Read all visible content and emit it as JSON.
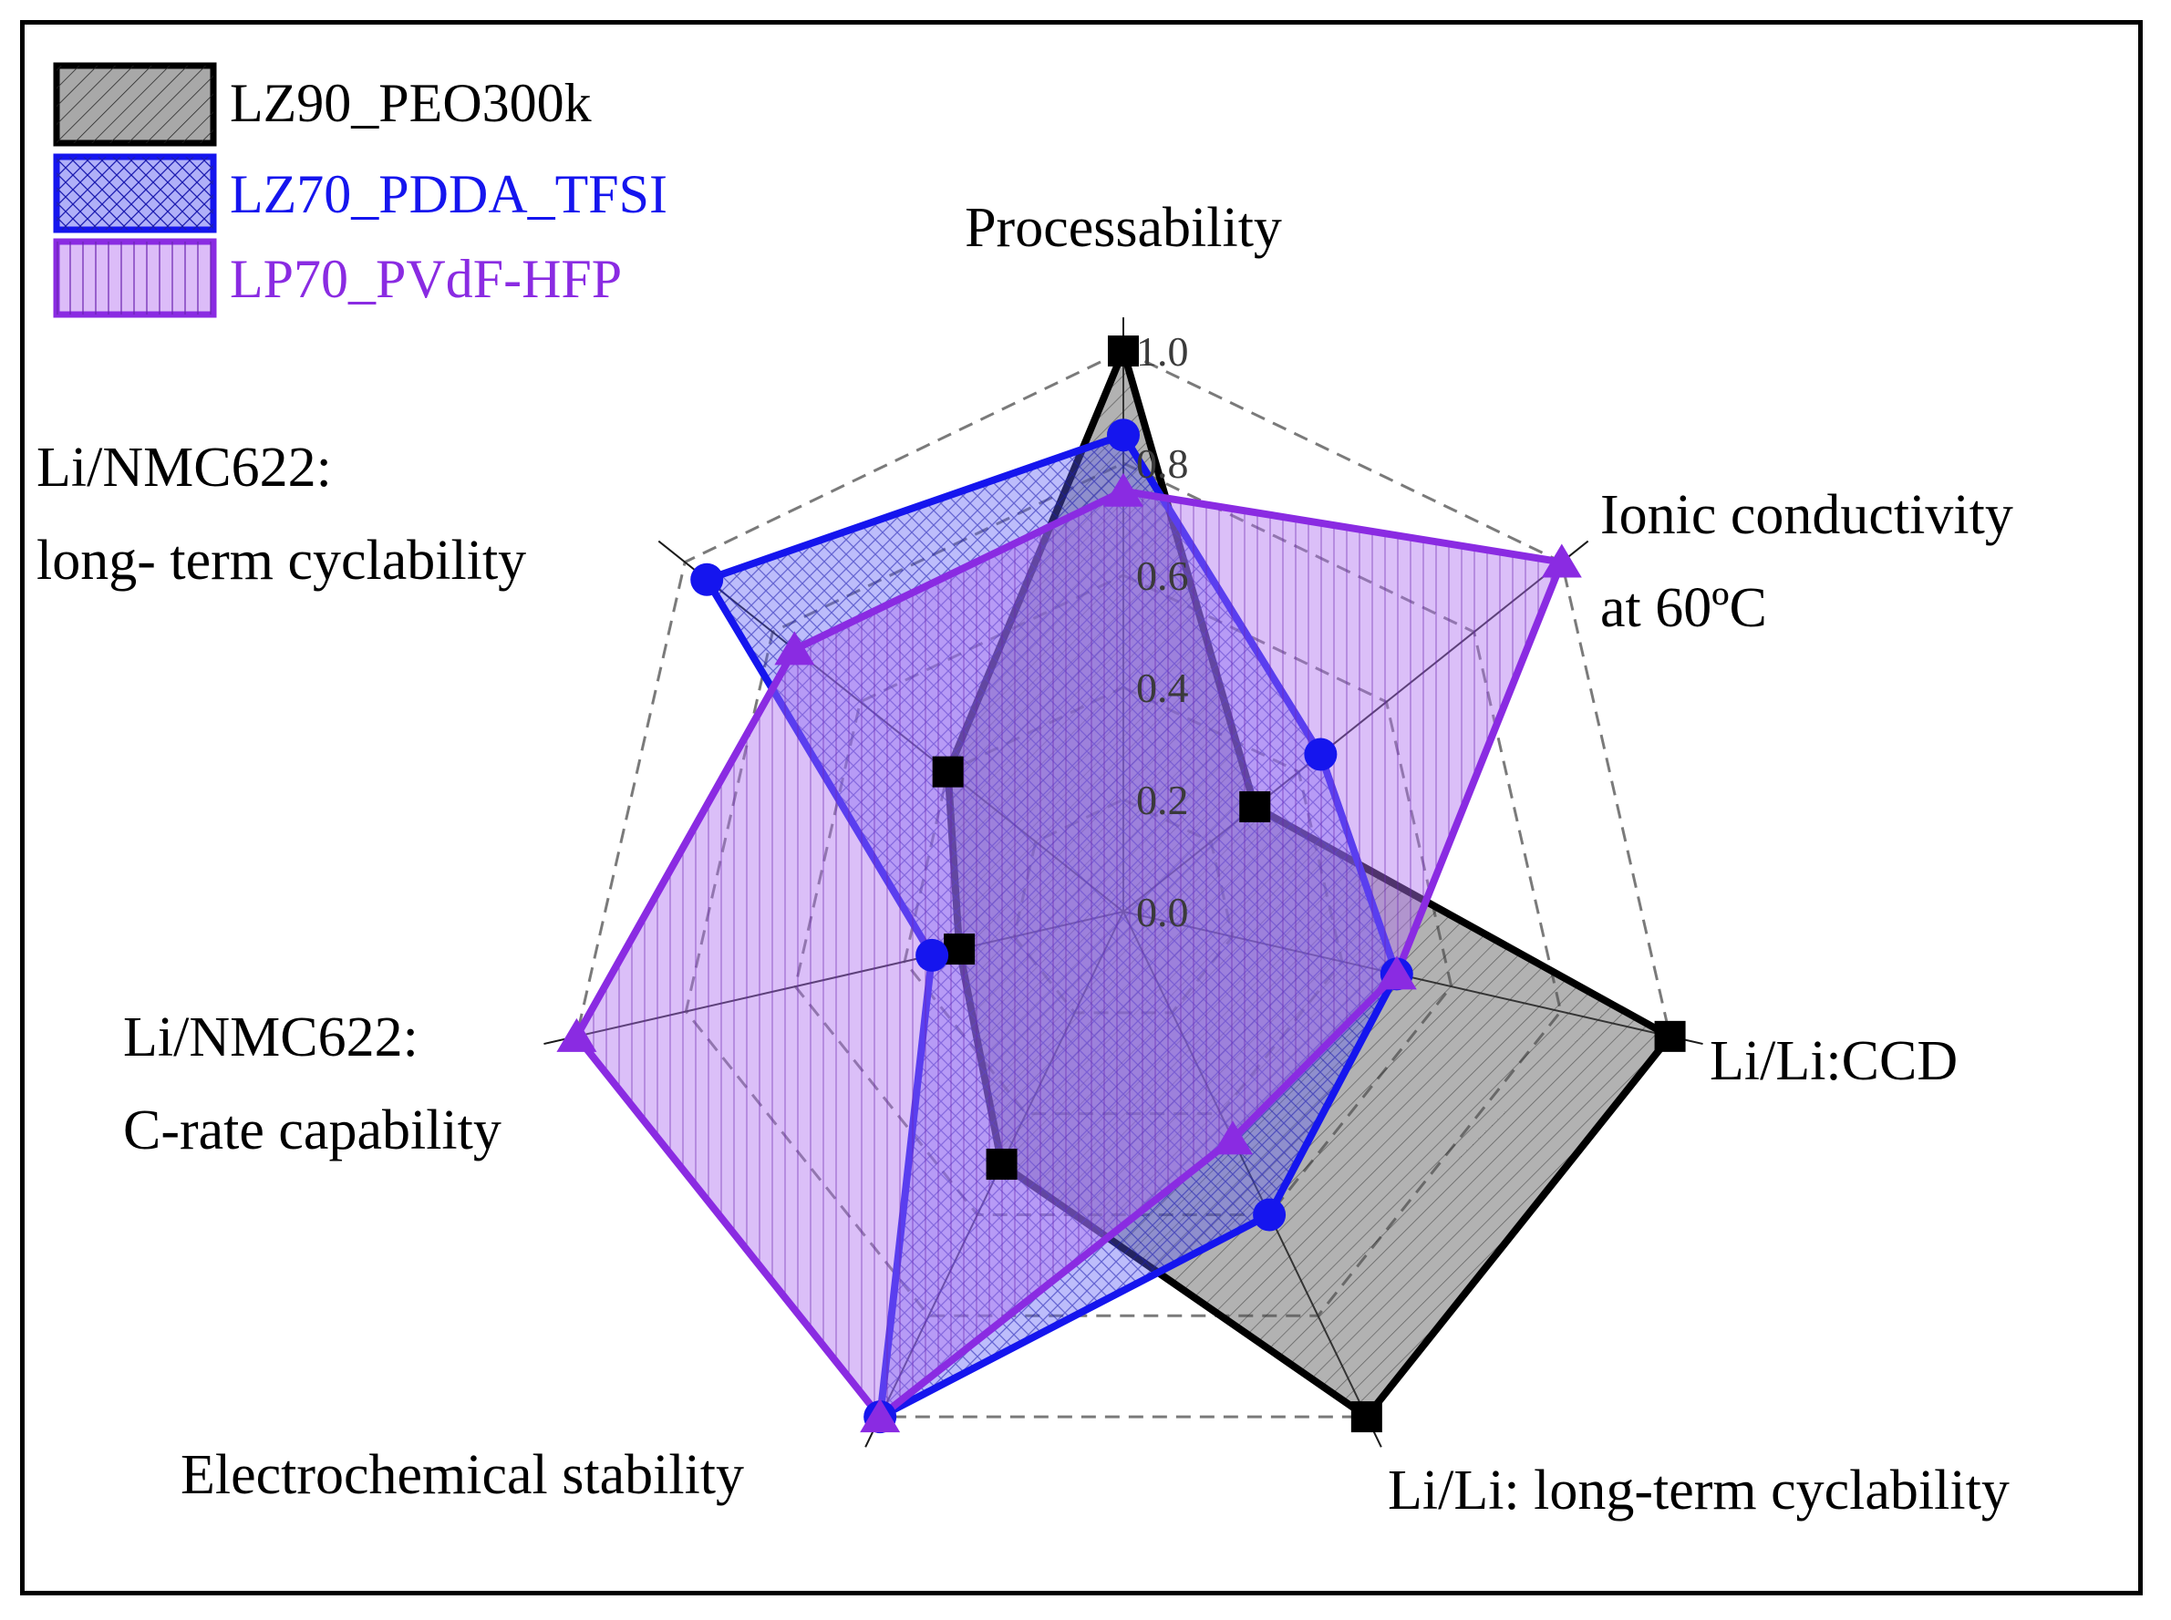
{
  "chart_data": {
    "type": "radar",
    "title": "",
    "axes": [
      "Processability",
      "Ionic conductivity at 60ºC",
      "Li/Li:CCD",
      "Li/Li: long-term cyclability",
      "Electrochemical stability",
      "Li/NMC622: C-rate capability",
      "Li/NMC622: long- term cyclability"
    ],
    "axis_labels": {
      "processability": [
        "Processability"
      ],
      "ionic": [
        "Ionic conductivity",
        "at 60ºC"
      ],
      "ccd": [
        "Li/Li:CCD"
      ],
      "li_cycl": [
        "Li/Li: long-term cyclability"
      ],
      "echem": [
        "Electrochemical stability"
      ],
      "crate": [
        "Li/NMC622:",
        "C-rate capability"
      ],
      "nmc_cycl": [
        "Li/NMC622:",
        "long- term cyclability"
      ]
    },
    "rlim": [
      0,
      1
    ],
    "ticks": [
      "0.0",
      "0.2",
      "0.4",
      "0.6",
      "0.8",
      "1.0"
    ],
    "tick_values": [
      0,
      0.2,
      0.4,
      0.6,
      0.8,
      1.0
    ],
    "series": [
      {
        "name": "LZ90_PEO300k",
        "color": "#000000",
        "fill": "#555555",
        "marker": "square",
        "hatch": "diagonal",
        "values": [
          1.0,
          0.3,
          1.0,
          1.0,
          0.5,
          0.3,
          0.4
        ]
      },
      {
        "name": "LZ70_PDDA_TFSI",
        "color": "#1515ee",
        "fill": "#5a5af5",
        "marker": "circle",
        "hatch": "crosshatch",
        "values": [
          0.85,
          0.45,
          0.5,
          0.6,
          1.0,
          0.35,
          0.95
        ]
      },
      {
        "name": "LP70_PVdF-HFP",
        "color": "#8a2be2",
        "fill": "#b070f0",
        "marker": "triangle",
        "hatch": "vertical",
        "values": [
          0.75,
          1.0,
          0.5,
          0.45,
          1.0,
          1.0,
          0.75
        ]
      }
    ],
    "legend": {
      "position": "top-left",
      "entries": [
        "LZ90_PEO300k",
        "LZ70_PDDA_TFSI",
        "LP70_PVdF-HFP"
      ]
    }
  }
}
